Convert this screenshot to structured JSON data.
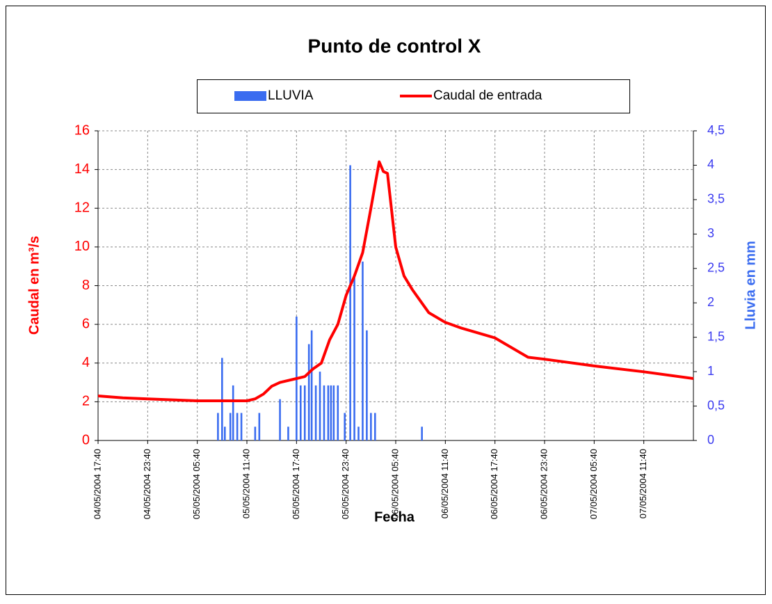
{
  "chart_data": {
    "type": "combo",
    "title": "Punto de control X",
    "xlabel": "Fecha",
    "ylabel": "Caudal en m³/s",
    "y2label": "Lluvia en mm",
    "grid": true,
    "xlim": [
      "04/05/2004 17:40",
      "07/05/2004 17:40"
    ],
    "xticks": [
      "04/05/2004 17:40",
      "04/05/2004 23:40",
      "05/05/2004 05:40",
      "05/05/2004 11:40",
      "05/05/2004 17:40",
      "05/05/2004 23:40",
      "06/05/2004 05:40",
      "06/05/2004 11:40",
      "06/05/2004 17:40",
      "06/05/2004 23:40",
      "07/05/2004 05:40",
      "07/05/2004 11:40"
    ],
    "ylim": [
      0,
      16
    ],
    "yticks": [
      0,
      2,
      4,
      6,
      8,
      10,
      12,
      14,
      16
    ],
    "y2lim": [
      0,
      4.5
    ],
    "y2ticks": [
      0,
      {
        "value": 0.5,
        "label": "0,5"
      },
      1,
      {
        "value": 1.5,
        "label": "1,5"
      },
      2,
      {
        "value": 2.5,
        "label": "2,5"
      },
      3,
      {
        "value": 3.5,
        "label": "3,5"
      },
      4,
      {
        "value": 4.5,
        "label": "4,5"
      }
    ],
    "series": [
      {
        "name": "LLUVIA",
        "type": "bar",
        "axis": "y2",
        "color": "#3a6cf0",
        "x": [
          "05/05/2004 08:10",
          "05/05/2004 08:40",
          "05/05/2004 09:00",
          "05/05/2004 09:40",
          "05/05/2004 10:00",
          "05/05/2004 10:30",
          "05/05/2004 11:00",
          "05/05/2004 12:40",
          "05/05/2004 13:10",
          "05/05/2004 15:40",
          "05/05/2004 16:40",
          "05/05/2004 17:40",
          "05/05/2004 18:10",
          "05/05/2004 18:40",
          "05/05/2004 19:10",
          "05/05/2004 19:30",
          "05/05/2004 20:00",
          "05/05/2004 20:30",
          "05/05/2004 21:00",
          "05/05/2004 21:30",
          "05/05/2004 21:50",
          "05/05/2004 22:10",
          "05/05/2004 22:40",
          "05/05/2004 23:30",
          "06/05/2004 00:10",
          "06/05/2004 00:40",
          "06/05/2004 01:10",
          "06/05/2004 01:40",
          "06/05/2004 02:10",
          "06/05/2004 02:40",
          "06/05/2004 03:10",
          "06/05/2004 08:50"
        ],
        "values": [
          0.4,
          1.2,
          0.2,
          0.4,
          0.8,
          0.4,
          0.4,
          0.2,
          0.4,
          0.6,
          0.2,
          1.8,
          0.8,
          0.8,
          1.4,
          1.6,
          0.8,
          1.0,
          0.8,
          0.8,
          0.8,
          0.8,
          0.8,
          0.4,
          4.0,
          2.4,
          0.2,
          2.6,
          1.6,
          0.4,
          0.4,
          0.2
        ]
      },
      {
        "name": "Caudal de entrada",
        "type": "line",
        "axis": "y",
        "color": "#ff0000",
        "x": [
          "04/05/2004 17:40",
          "04/05/2004 20:40",
          "04/05/2004 23:40",
          "05/05/2004 02:40",
          "05/05/2004 05:40",
          "05/05/2004 08:40",
          "05/05/2004 11:40",
          "05/05/2004 12:40",
          "05/05/2004 13:40",
          "05/05/2004 14:40",
          "05/05/2004 15:40",
          "05/05/2004 17:40",
          "05/05/2004 18:40",
          "05/05/2004 19:40",
          "05/05/2004 20:40",
          "05/05/2004 21:40",
          "05/05/2004 22:40",
          "05/05/2004 23:40",
          "06/05/2004 00:40",
          "06/05/2004 01:40",
          "06/05/2004 02:40",
          "06/05/2004 03:40",
          "06/05/2004 04:10",
          "06/05/2004 04:40",
          "06/05/2004 05:40",
          "06/05/2004 06:40",
          "06/05/2004 07:40",
          "06/05/2004 08:40",
          "06/05/2004 09:40",
          "06/05/2004 11:40",
          "06/05/2004 13:40",
          "06/05/2004 17:40",
          "06/05/2004 21:40",
          "06/05/2004 23:40",
          "07/05/2004 05:40",
          "07/05/2004 11:40",
          "07/05/2004 17:40"
        ],
        "values": [
          2.3,
          2.2,
          2.15,
          2.1,
          2.05,
          2.05,
          2.05,
          2.15,
          2.4,
          2.8,
          3.0,
          3.2,
          3.3,
          3.7,
          4.0,
          5.2,
          6.0,
          7.5,
          8.5,
          9.7,
          12.0,
          14.4,
          13.9,
          13.8,
          10.0,
          8.5,
          7.8,
          7.2,
          6.6,
          6.1,
          5.8,
          5.3,
          4.3,
          4.2,
          3.85,
          3.55,
          3.2
        ]
      }
    ]
  }
}
